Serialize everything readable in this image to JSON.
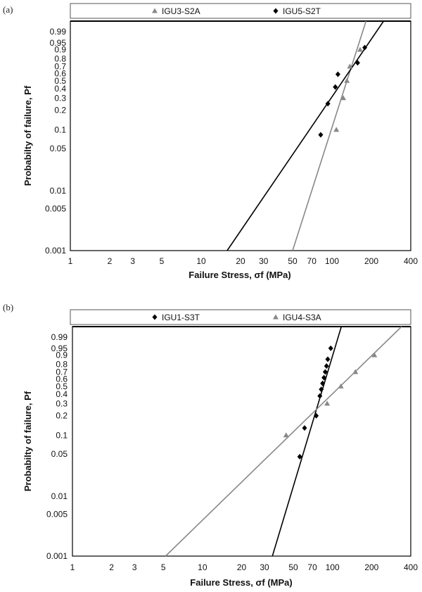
{
  "chart_data": [
    {
      "panel": "(a)",
      "type": "scatter",
      "xlabel": "Failure Stress, σf (MPa)",
      "ylabel": "Probabilty of failure, Pf",
      "xscale": "log",
      "yscale": "weibull",
      "xlim": [
        1,
        400
      ],
      "ylim": [
        0.001,
        0.999
      ],
      "xticks": [
        1,
        2,
        3,
        5,
        10,
        20,
        30,
        50,
        70,
        100,
        200,
        400
      ],
      "yticks": [
        0.001,
        0.005,
        0.01,
        0.05,
        0.1,
        0.2,
        0.3,
        0.4,
        0.5,
        0.6,
        0.7,
        0.8,
        0.9,
        0.95,
        0.99
      ],
      "legend_position": "top",
      "series": [
        {
          "name": "IGU3-S2A",
          "marker": "triangle",
          "color": "#888888",
          "points": [
            [
              108,
              0.1
            ],
            [
              122,
              0.3
            ],
            [
              130,
              0.5
            ],
            [
              137,
              0.7
            ],
            [
              164,
              0.9
            ]
          ],
          "fit": [
            [
              50,
              0.001
            ],
            [
              182,
              0.999
            ]
          ]
        },
        {
          "name": "IGU5-S2T",
          "marker": "diamond",
          "color": "#000000",
          "points": [
            [
              82,
              0.083
            ],
            [
              93,
              0.25
            ],
            [
              106,
              0.42
            ],
            [
              111,
              0.59
            ],
            [
              157,
              0.75
            ],
            [
              178,
              0.917
            ]
          ],
          "fit": [
            [
              15.8,
              0.001
            ],
            [
              248,
              0.999
            ]
          ]
        }
      ]
    },
    {
      "panel": "(b)",
      "type": "scatter",
      "xlabel": "Failure Stress, σf (MPa)",
      "ylabel": "Probabilty of failure, Pf",
      "xscale": "log",
      "yscale": "weibull",
      "xlim": [
        1,
        400
      ],
      "ylim": [
        0.001,
        0.999
      ],
      "xticks": [
        1,
        2,
        3,
        5,
        10,
        20,
        30,
        50,
        70,
        100,
        200,
        400
      ],
      "yticks": [
        0.001,
        0.005,
        0.01,
        0.05,
        0.1,
        0.2,
        0.3,
        0.4,
        0.5,
        0.6,
        0.7,
        0.8,
        0.9,
        0.95,
        0.99
      ],
      "legend_position": "top",
      "series": [
        {
          "name": "IGU1-S3T",
          "marker": "diamond",
          "color": "#000000",
          "points": [
            [
              56,
              0.045
            ],
            [
              61,
              0.13
            ],
            [
              75,
              0.2
            ],
            [
              80,
              0.38
            ],
            [
              82,
              0.46
            ],
            [
              84,
              0.54
            ],
            [
              86,
              0.62
            ],
            [
              88,
              0.7
            ],
            [
              90,
              0.78
            ],
            [
              92,
              0.86
            ],
            [
              97,
              0.95
            ]
          ],
          "fit": [
            [
              34.5,
              0.001
            ],
            [
              117,
              0.999
            ]
          ]
        },
        {
          "name": "IGU4-S3A",
          "marker": "triangle",
          "color": "#888888",
          "points": [
            [
              44,
              0.1
            ],
            [
              91,
              0.3
            ],
            [
              116,
              0.5
            ],
            [
              150,
              0.7
            ],
            [
              210,
              0.9
            ]
          ],
          "fit": [
            [
              5.2,
              0.001
            ],
            [
              340,
              0.999
            ]
          ]
        }
      ]
    }
  ]
}
